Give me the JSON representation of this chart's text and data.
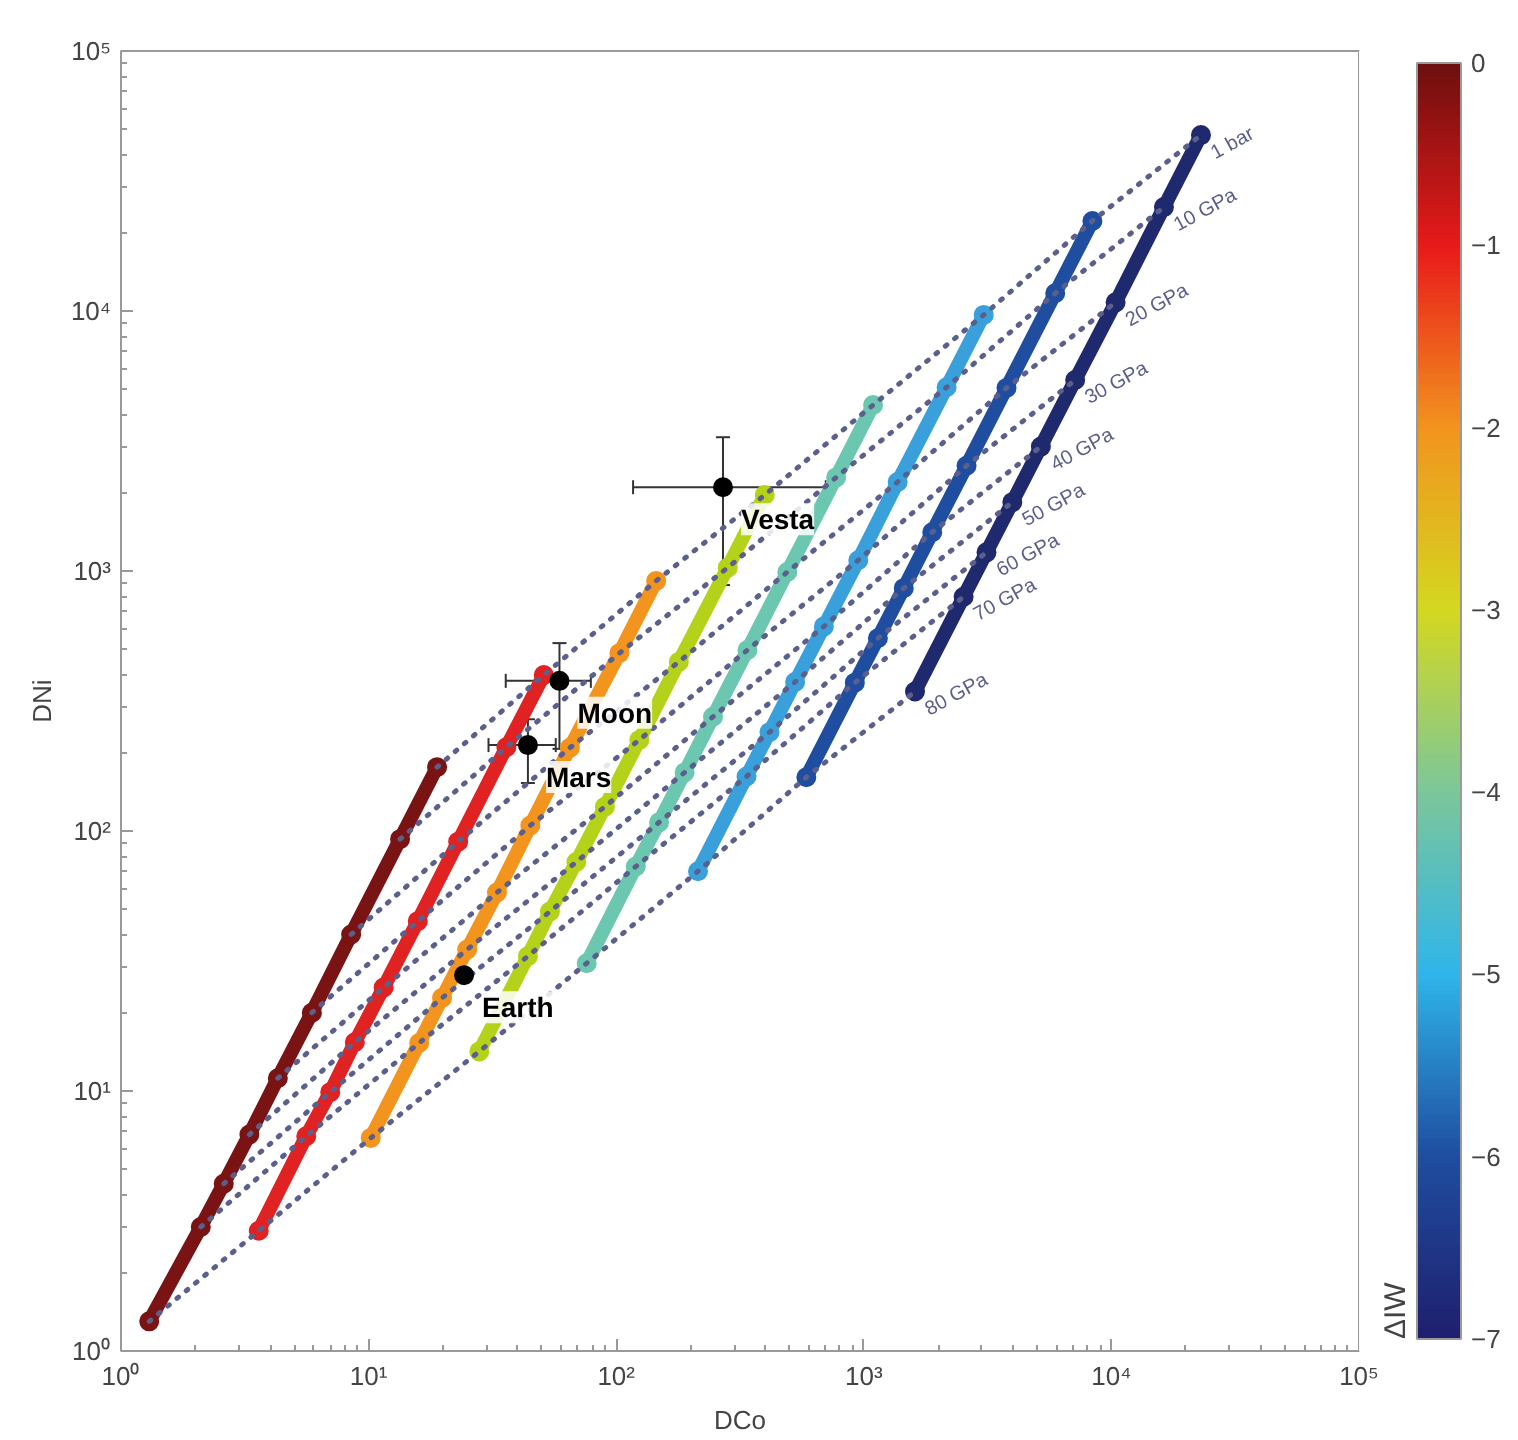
{
  "chart_data": {
    "type": "line",
    "xlabel": "DCo",
    "ylabel": "DNi",
    "clabel": "ΔIW",
    "log": "xy",
    "marker": "circle",
    "xlim": [
      1,
      100000
    ],
    "ylim": [
      1,
      100000
    ],
    "xticks": [
      {
        "value": 1,
        "label": "10⁰"
      },
      {
        "value": 10,
        "label": "10¹"
      },
      {
        "value": 100,
        "label": "10²"
      },
      {
        "value": 1000,
        "label": "10³"
      },
      {
        "value": 10000,
        "label": "10⁴"
      },
      {
        "value": 100000,
        "label": "10⁵"
      }
    ],
    "yticks": [
      {
        "value": 1,
        "label": "10⁰"
      },
      {
        "value": 10,
        "label": "10¹"
      },
      {
        "value": 100,
        "label": "10²"
      },
      {
        "value": 1000,
        "label": "10³"
      },
      {
        "value": 10000,
        "label": "10⁴"
      },
      {
        "value": 100000,
        "label": "10⁵"
      }
    ],
    "clim": [
      -7,
      0
    ],
    "cticks": [
      -7,
      -6,
      -5,
      -4,
      -3,
      -2,
      -1,
      0
    ],
    "series": [
      {
        "color": "#7a1414",
        "x": [
          18.9,
          13.4,
          8.5,
          5.9,
          4.3,
          3.3,
          2.6,
          2.1,
          1.3
        ],
        "values": [
          176,
          93,
          40,
          20,
          11.2,
          6.8,
          4.4,
          3.0,
          1.3
        ]
      },
      {
        "color": "#e02222",
        "x": [
          51,
          36,
          23,
          15.8,
          11.5,
          8.8,
          7.0,
          5.6,
          3.6
        ],
        "values": [
          398,
          210,
          91,
          45,
          25,
          15.4,
          9.9,
          6.7,
          2.9
        ]
      },
      {
        "color": "#f2941e",
        "x": [
          145,
          103,
          65,
          45,
          33,
          25,
          19.8,
          16,
          10.2
        ],
        "values": [
          916,
          483,
          209,
          105,
          58,
          35,
          22.8,
          15.3,
          6.6
        ]
      },
      {
        "color": "#b5d21a",
        "x": [
          398,
          282,
          179,
          124,
          90,
          69,
          54,
          44,
          28
        ],
        "values": [
          1960,
          1030,
          447,
          224,
          124,
          76,
          49,
          33,
          14.2
        ]
      },
      {
        "color": "#6cc7b0",
        "x": [
          1090,
          773,
          491,
          339,
          246,
          189,
          149,
          120,
          76
        ],
        "values": [
          4350,
          2290,
          991,
          497,
          275,
          168,
          108,
          73,
          31
        ]
      },
      {
        "color": "#3aa0dc",
        "x": [
          3050,
          2160,
          1370,
          950,
          690,
          528,
          416,
          336,
          214
        ],
        "values": [
          9660,
          5090,
          2200,
          1100,
          612,
          374,
          240,
          162,
          70
        ]
      },
      {
        "color": "#1f4ea0",
        "x": [
          8380,
          5930,
          3770,
          2600,
          1890,
          1450,
          1140,
          920,
          586
        ],
        "values": [
          22200,
          11700,
          5060,
          2540,
          1410,
          859,
          551,
          372,
          161
        ]
      },
      {
        "color": "#1f2a6e",
        "x": [
          23000,
          16300,
          10400,
          7140,
          5190,
          3980,
          3130,
          2530,
          1610
        ],
        "values": [
          47500,
          25100,
          10800,
          5430,
          3010,
          1840,
          1180,
          796,
          344
        ]
      },
      {
        "name": "1 bar",
        "line_style": "dotted",
        "marker": "none",
        "color": "#5b5f8c",
        "x": [
          18.9,
          51,
          145,
          398,
          1090,
          3050,
          8380,
          23000
        ],
        "values": [
          176,
          398,
          916,
          1960,
          4350,
          9660,
          22200,
          47500
        ]
      },
      {
        "name": "10 GPa",
        "line_style": "dotted",
        "marker": "none",
        "color": "#5b5f8c",
        "x": [
          13.4,
          36,
          103,
          282,
          773,
          2160,
          5930,
          16300
        ],
        "values": [
          93,
          210,
          483,
          1030,
          2290,
          5090,
          11700,
          25100
        ]
      },
      {
        "name": "20 GPa",
        "line_style": "dotted",
        "marker": "none",
        "color": "#5b5f8c",
        "x": [
          8.5,
          23,
          65,
          179,
          491,
          1370,
          3770,
          10400
        ],
        "values": [
          40,
          91,
          209,
          447,
          991,
          2200,
          5060,
          10800
        ]
      },
      {
        "name": "30 GPa",
        "line_style": "dotted",
        "marker": "none",
        "color": "#5b5f8c",
        "x": [
          5.9,
          15.8,
          45,
          124,
          339,
          950,
          2600,
          7140
        ],
        "values": [
          20,
          45,
          105,
          224,
          497,
          1100,
          2540,
          5430
        ]
      },
      {
        "name": "40 GPa",
        "line_style": "dotted",
        "marker": "none",
        "color": "#5b5f8c",
        "x": [
          4.3,
          11.5,
          33,
          90,
          246,
          690,
          1890,
          5190
        ],
        "values": [
          11.2,
          25,
          58,
          124,
          275,
          612,
          1410,
          3010
        ]
      },
      {
        "name": "50 GPa",
        "line_style": "dotted",
        "marker": "none",
        "color": "#5b5f8c",
        "x": [
          3.3,
          8.8,
          25,
          69,
          189,
          528,
          1450,
          3980
        ],
        "values": [
          6.8,
          15.4,
          35,
          76,
          168,
          374,
          859,
          1840
        ]
      },
      {
        "name": "60 GPa",
        "line_style": "dotted",
        "marker": "none",
        "color": "#5b5f8c",
        "x": [
          2.6,
          7.0,
          19.8,
          54,
          149,
          416,
          1140,
          3130
        ],
        "values": [
          4.4,
          9.9,
          22.8,
          49,
          108,
          240,
          551,
          1180
        ]
      },
      {
        "name": "70 GPa",
        "line_style": "dotted",
        "marker": "none",
        "color": "#5b5f8c",
        "x": [
          2.1,
          5.6,
          16,
          44,
          120,
          336,
          920,
          2530
        ],
        "values": [
          3.0,
          6.7,
          15.3,
          33,
          73,
          162,
          372,
          796
        ]
      },
      {
        "name": "80 GPa",
        "line_style": "dotted",
        "marker": "none",
        "color": "#5b5f8c",
        "x": [
          1.3,
          3.6,
          10.2,
          28,
          76,
          214,
          586,
          1610
        ],
        "values": [
          1.3,
          2.9,
          6.6,
          14.2,
          31,
          70,
          161,
          344
        ]
      },
      {
        "type": "scatter",
        "name": "Earth",
        "color": "#000000",
        "x": [
          24.3
        ],
        "values": [
          27.9
        ]
      },
      {
        "type": "scatter",
        "name": "Moon",
        "color": "#000000",
        "x": [
          59
        ],
        "values": [
          378
        ],
        "errors": [
          [
            207,
            528
          ]
        ],
        "xerrors": [
          [
            35.8,
            79
          ]
        ]
      },
      {
        "type": "scatter",
        "name": "Mars",
        "color": "#000000",
        "x": [
          44
        ],
        "values": [
          214
        ],
        "errors": [
          [
            153,
            269
          ]
        ],
        "xerrors": [
          [
            30.5,
            57
          ]
        ]
      },
      {
        "type": "scatter",
        "name": "Vesta",
        "color": "#000000",
        "x": [
          270
        ],
        "values": [
          2100
        ],
        "errors": [
          [
            883,
            3270
          ]
        ],
        "xerrors": [
          [
            117,
            702
          ]
        ]
      }
    ],
    "grid": false
  }
}
